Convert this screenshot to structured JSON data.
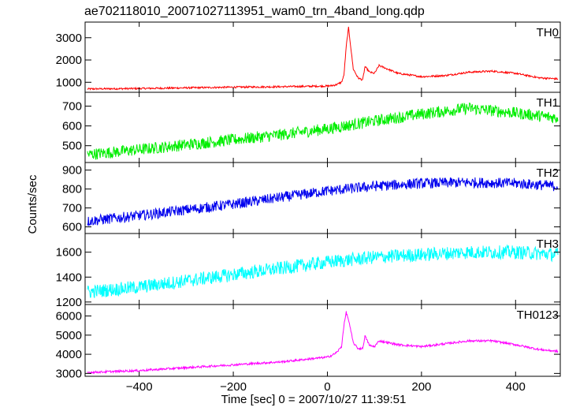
{
  "title": "ae702118010_20071027113951_wam0_trn_4band_long.qdp",
  "ylabel": "Counts/sec",
  "xlabel": "Time [sec] 0 = 2007/10/27 11:39:51",
  "xlim": [
    -515,
    495
  ],
  "xticks": [
    -400,
    -200,
    0,
    200,
    400
  ],
  "chart_data": [
    {
      "type": "line",
      "name": "TH0",
      "color": "#ff0000",
      "ylim": [
        550,
        3700
      ],
      "yticks": [
        1000,
        2000,
        3000
      ],
      "noise": 40,
      "x": [
        -510,
        -400,
        -300,
        -200,
        -100,
        0,
        10,
        20,
        30,
        35,
        40,
        45,
        55,
        65,
        75,
        80,
        90,
        100,
        110,
        150,
        200,
        250,
        300,
        350,
        400,
        450,
        490
      ],
      "y": [
        700,
        720,
        750,
        780,
        800,
        830,
        850,
        900,
        1000,
        1300,
        2600,
        3450,
        1600,
        1200,
        1100,
        1700,
        1450,
        1400,
        1750,
        1400,
        1250,
        1300,
        1450,
        1500,
        1400,
        1200,
        1150
      ]
    },
    {
      "type": "line",
      "name": "TH1",
      "color": "#00ee00",
      "ylim": [
        415,
        770
      ],
      "yticks": [
        500,
        600,
        700
      ],
      "noise": 30,
      "x": [
        -510,
        -400,
        -300,
        -200,
        -100,
        0,
        100,
        200,
        300,
        400,
        490
      ],
      "y": [
        455,
        480,
        505,
        530,
        555,
        585,
        625,
        660,
        690,
        665,
        640
      ]
    },
    {
      "type": "line",
      "name": "TH2",
      "color": "#0000ee",
      "ylim": [
        565,
        940
      ],
      "yticks": [
        600,
        700,
        800,
        900
      ],
      "noise": 28,
      "x": [
        -510,
        -400,
        -300,
        -200,
        -100,
        0,
        100,
        200,
        300,
        400,
        490
      ],
      "y": [
        630,
        660,
        690,
        720,
        755,
        790,
        815,
        830,
        835,
        830,
        815
      ]
    },
    {
      "type": "line",
      "name": "TH3",
      "color": "#00ffff",
      "ylim": [
        1180,
        1750
      ],
      "yticks": [
        1200,
        1400,
        1600
      ],
      "noise": 55,
      "x": [
        -510,
        -400,
        -300,
        -200,
        -100,
        0,
        100,
        200,
        300,
        400,
        490
      ],
      "y": [
        1280,
        1320,
        1370,
        1420,
        1470,
        1520,
        1560,
        1580,
        1600,
        1600,
        1580
      ]
    },
    {
      "type": "line",
      "name": "TH0123",
      "color": "#ff00ff",
      "ylim": [
        2850,
        6600
      ],
      "yticks": [
        3000,
        4000,
        5000,
        6000
      ],
      "noise": 55,
      "x": [
        -510,
        -400,
        -300,
        -200,
        -100,
        0,
        10,
        20,
        30,
        35,
        40,
        45,
        55,
        65,
        75,
        80,
        90,
        100,
        110,
        150,
        200,
        250,
        300,
        350,
        400,
        450,
        490
      ],
      "y": [
        3050,
        3150,
        3300,
        3450,
        3600,
        3850,
        3950,
        4100,
        4400,
        5500,
        6200,
        5800,
        4600,
        4300,
        4300,
        4950,
        4450,
        4400,
        4700,
        4500,
        4400,
        4550,
        4700,
        4700,
        4500,
        4250,
        4150
      ]
    }
  ]
}
